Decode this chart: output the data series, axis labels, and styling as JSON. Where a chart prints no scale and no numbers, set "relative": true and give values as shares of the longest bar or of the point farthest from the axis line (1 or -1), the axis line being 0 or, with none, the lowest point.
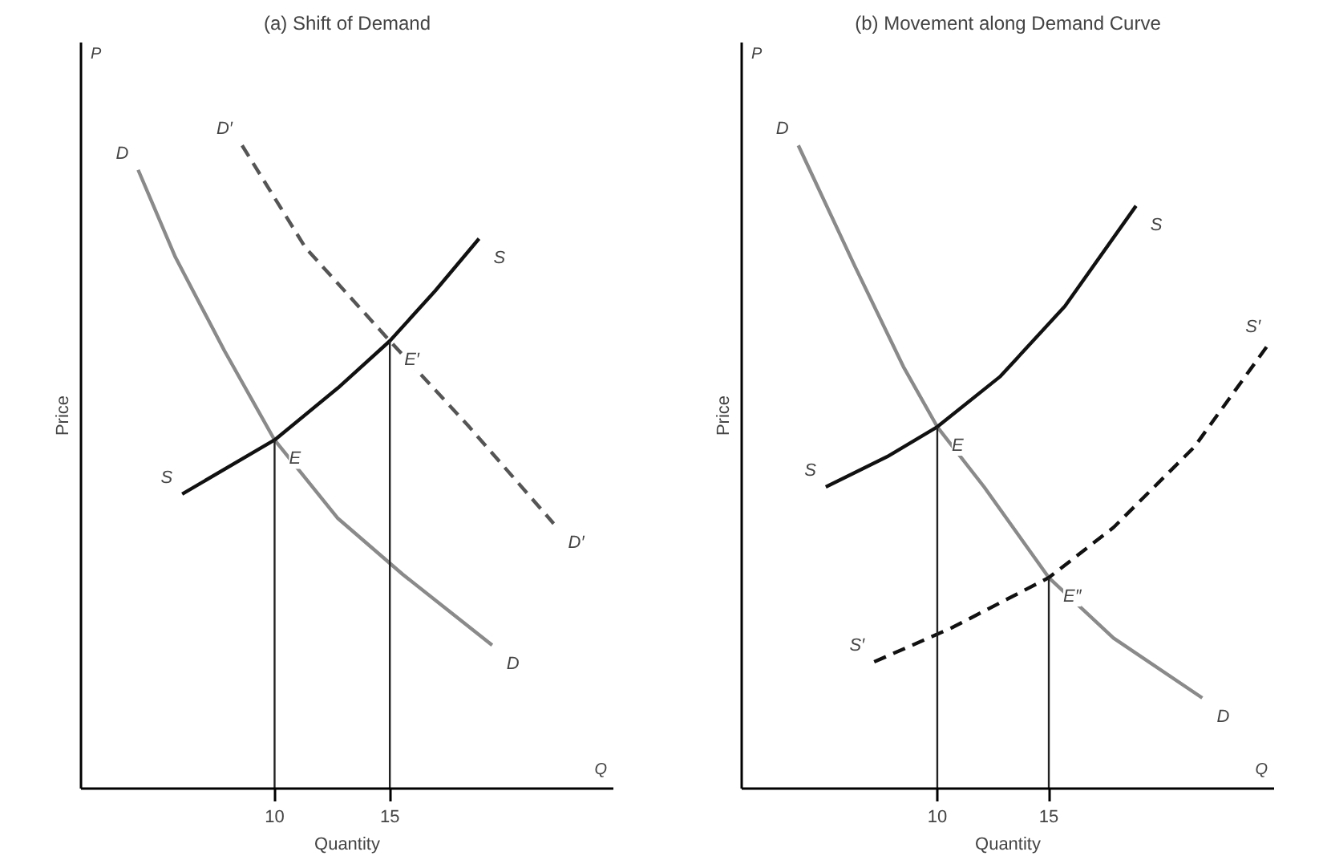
{
  "chart_data": [
    {
      "type": "line",
      "title": "(a) Shift of Demand",
      "xlabel": "Quantity",
      "ylabel": "Price",
      "relative": true,
      "xlim": [
        1.6,
        24.7
      ],
      "xticks": [
        10,
        15
      ],
      "grid": false,
      "annotations": [
        "P",
        "Q",
        {
          "text": "D",
          "x": 19.44,
          "y": 0.223
        },
        {
          "text": "S",
          "x": 18.87,
          "y": 0.855
        },
        {
          "text": "D′",
          "x": 22.11,
          "y": 0.412
        },
        {
          "text": "E",
          "x": 10,
          "y": 0.542
        },
        {
          "text": "E′",
          "x": 15,
          "y": 0.696
        }
      ],
      "series": [
        {
          "name": "D",
          "color": "#8a8a8a",
          "line_style": "solid",
          "x": [
            4.08,
            5.7,
            7.82,
            10,
            12.75,
            15.56,
            19.44
          ],
          "values": [
            0.962,
            0.826,
            0.681,
            0.542,
            0.42,
            0.333,
            0.223
          ]
        },
        {
          "name": "S",
          "color": "#111111",
          "line_style": "solid",
          "x": [
            5.99,
            10,
            12.75,
            15,
            16.97,
            18.87
          ],
          "values": [
            0.458,
            0.542,
            0.623,
            0.696,
            0.774,
            0.855
          ]
        },
        {
          "name": "D′",
          "color": "#555555",
          "line_style": "dashed",
          "x": [
            8.59,
            11.34,
            15,
            18.38,
            22.11
          ],
          "values": [
            1,
            0.841,
            0.696,
            0.565,
            0.412
          ]
        },
        {
          "color": "#222222",
          "line_style": "solid",
          "x": [
            10,
            10
          ],
          "values": [
            0,
            0.542
          ]
        },
        {
          "color": "#222222",
          "line_style": "solid",
          "x": [
            15,
            15
          ],
          "values": [
            0,
            0.696
          ]
        }
      ]
    },
    {
      "type": "line",
      "title": "(b) Movement along Demand Curve",
      "xlabel": "Quantity",
      "ylabel": "Price",
      "relative": true,
      "xlim": [
        1.23,
        25.1
      ],
      "xticks": [
        10,
        15
      ],
      "grid": false,
      "annotations": [
        "P",
        "Q",
        {
          "text": "D",
          "x": 21.88,
          "y": 0.141
        },
        {
          "text": "S",
          "x": 18.91,
          "y": 0.906
        },
        {
          "text": "S′",
          "x": 24.78,
          "y": 0.6875
        },
        {
          "text": "E",
          "x": 10,
          "y": 0.5625
        },
        {
          "text": "E″",
          "x": 15,
          "y": 0.328
        }
      ],
      "series": [
        {
          "name": "D",
          "color": "#8a8a8a",
          "line_style": "solid",
          "x": [
            3.77,
            6.3,
            8.48,
            10,
            12.1,
            15,
            17.9,
            21.88
          ],
          "values": [
            1,
            0.8125,
            0.656,
            0.5625,
            0.469,
            0.328,
            0.234,
            0.141
          ]
        },
        {
          "name": "S",
          "color": "#111111",
          "line_style": "solid",
          "x": [
            5,
            7.75,
            10,
            12.83,
            15.72,
            18.91
          ],
          "values": [
            0.469,
            0.516,
            0.5625,
            0.641,
            0.75,
            0.906
          ]
        },
        {
          "name": "S′",
          "color": "#111111",
          "line_style": "dashed",
          "x": [
            7.17,
            10.65,
            15,
            17.9,
            21.52,
            24.78
          ],
          "values": [
            0.197,
            0.25,
            0.328,
            0.406,
            0.531,
            0.6875
          ]
        },
        {
          "color": "#222222",
          "line_style": "solid",
          "x": [
            10,
            10
          ],
          "values": [
            0,
            0.5625
          ]
        },
        {
          "color": "#222222",
          "line_style": "solid",
          "x": [
            15,
            15
          ],
          "values": [
            0,
            0.328
          ]
        }
      ]
    }
  ]
}
